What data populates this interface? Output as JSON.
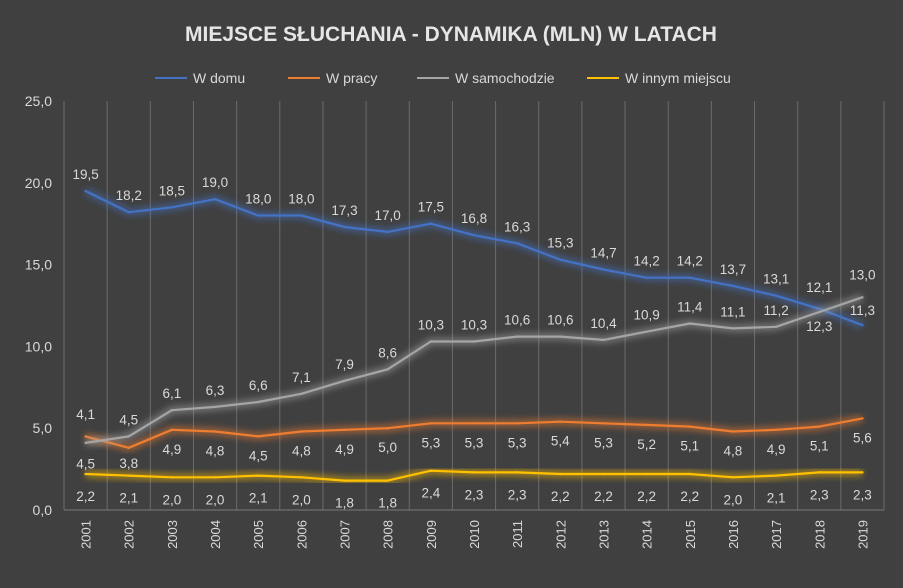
{
  "chart_data": {
    "type": "line",
    "title": "MIEJSCE SŁUCHANIA - DYNAMIKA (MLN) W LATACH",
    "x": [
      "2001",
      "2002",
      "2003",
      "2004",
      "2005",
      "2006",
      "2007",
      "2008",
      "2009",
      "2010",
      "2011",
      "2012",
      "2013",
      "2014",
      "2015",
      "2016",
      "2017",
      "2018",
      "2019"
    ],
    "ylim": [
      0,
      25
    ],
    "yticks": [
      "0,0",
      "5,0",
      "10,0",
      "15,0",
      "20,0",
      "25,0"
    ],
    "grid": "vertical",
    "legend_position": "top",
    "series": [
      {
        "name": "W domu",
        "color": "#4472c4",
        "values": [
          19.5,
          18.2,
          18.5,
          19.0,
          18.0,
          18.0,
          17.3,
          17.0,
          17.5,
          16.8,
          16.3,
          15.3,
          14.7,
          14.2,
          14.2,
          13.7,
          13.1,
          12.3,
          11.3
        ],
        "labels": [
          "19,5",
          "18,2",
          "18,5",
          "19,0",
          "18,0",
          "18,0",
          "17,3",
          "17,0",
          "17,5",
          "16,8",
          "16,3",
          "15,3",
          "14,7",
          "14,2",
          "14,2",
          "13,7",
          "13,1",
          "12,3",
          "11,3"
        ]
      },
      {
        "name": "W pracy",
        "color": "#ed7d31",
        "values": [
          4.5,
          3.8,
          4.9,
          4.8,
          4.5,
          4.8,
          4.9,
          5.0,
          5.3,
          5.3,
          5.3,
          5.4,
          5.3,
          5.2,
          5.1,
          4.8,
          4.9,
          5.1,
          5.6
        ],
        "labels": [
          "4,5",
          "3,8",
          "4,9",
          "4,8",
          "4,5",
          "4,8",
          "4,9",
          "5,0",
          "5,3",
          "5,3",
          "5,3",
          "5,4",
          "5,3",
          "5,2",
          "5,1",
          "4,8",
          "4,9",
          "5,1",
          "5,6"
        ]
      },
      {
        "name": "W samochodzie",
        "color": "#a5a5a5",
        "values": [
          4.1,
          4.5,
          6.1,
          6.3,
          6.6,
          7.1,
          7.9,
          8.6,
          10.3,
          10.3,
          10.6,
          10.6,
          10.4,
          10.9,
          11.4,
          11.1,
          11.2,
          12.1,
          13.0
        ],
        "labels": [
          "4,1",
          "4,5",
          "6,1",
          "6,3",
          "6,6",
          "7,1",
          "7,9",
          "8,6",
          "10,3",
          "10,3",
          "10,6",
          "10,6",
          "10,4",
          "10,9",
          "11,4",
          "11,1",
          "11,2",
          "12,1",
          "13,0"
        ]
      },
      {
        "name": "W innym miejscu",
        "color": "#ffc000",
        "values": [
          2.2,
          2.1,
          2.0,
          2.0,
          2.1,
          2.0,
          1.8,
          1.8,
          2.4,
          2.3,
          2.3,
          2.2,
          2.2,
          2.2,
          2.2,
          2.0,
          2.1,
          2.3,
          2.3
        ],
        "labels": [
          "2,2",
          "2,1",
          "2,0",
          "2,0",
          "2,1",
          "2,0",
          "1,8",
          "1,8",
          "2,4",
          "2,3",
          "2,3",
          "2,2",
          "2,2",
          "2,2",
          "2,2",
          "2,0",
          "2,1",
          "2,3",
          "2,3"
        ]
      }
    ]
  }
}
